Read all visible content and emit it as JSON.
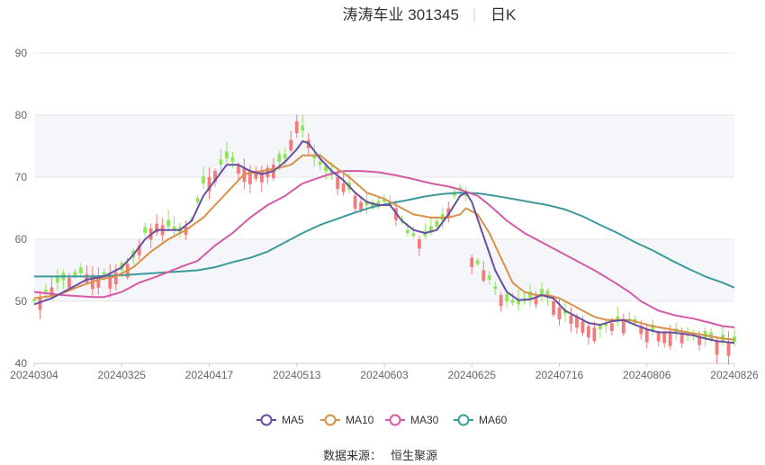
{
  "chart_data": {
    "type": "candlestick",
    "title": "涛涛车业 301345",
    "period": "日K",
    "source_label": "数据来源：",
    "source_value": "恒生聚源",
    "ylim": [
      40,
      90
    ],
    "yticks": [
      40,
      50,
      60,
      70,
      80,
      90
    ],
    "x_tick_labels": [
      "20240304",
      "20240325",
      "20240417",
      "20240513",
      "20240603",
      "20240625",
      "20240716",
      "20240806",
      "20240826"
    ],
    "x_tick_index": [
      0,
      15,
      30,
      45,
      60,
      75,
      90,
      105,
      120
    ],
    "num_days": 121,
    "colors": {
      "up": "#f27c7c",
      "down": "#8ee65a",
      "MA5": "#6a4fa0",
      "MA10": "#d9914a",
      "MA30": "#d45aa6",
      "MA60": "#3e9a9a",
      "band": "#f5f6fa",
      "grid": "#e6e6e6"
    },
    "legend": [
      "MA5",
      "MA10",
      "MA30",
      "MA60"
    ],
    "close_anchors": [
      [
        0,
        50
      ],
      [
        4,
        53
      ],
      [
        8,
        54.5
      ],
      [
        12,
        54
      ],
      [
        15,
        55
      ],
      [
        17,
        57
      ],
      [
        19,
        61
      ],
      [
        21,
        62.5
      ],
      [
        23,
        62
      ],
      [
        25,
        61
      ],
      [
        27,
        63
      ],
      [
        29,
        69
      ],
      [
        31,
        71
      ],
      [
        33,
        73
      ],
      [
        35,
        72
      ],
      [
        37,
        71
      ],
      [
        39,
        71
      ],
      [
        41,
        72
      ],
      [
        43,
        73
      ],
      [
        45,
        79
      ],
      [
        47,
        76
      ],
      [
        48,
        73
      ],
      [
        50,
        71
      ],
      [
        52,
        70
      ],
      [
        54,
        68
      ],
      [
        56,
        66
      ],
      [
        58,
        65
      ],
      [
        60,
        66
      ],
      [
        62,
        65
      ],
      [
        64,
        61
      ],
      [
        66,
        60
      ],
      [
        68,
        61
      ],
      [
        70,
        63
      ],
      [
        72,
        67
      ],
      [
        73,
        68
      ],
      [
        74,
        67
      ],
      [
        75,
        57
      ],
      [
        77,
        55
      ],
      [
        79,
        52
      ],
      [
        81,
        50
      ],
      [
        83,
        49.5
      ],
      [
        85,
        50.5
      ],
      [
        87,
        51
      ],
      [
        89,
        50
      ],
      [
        91,
        48
      ],
      [
        93,
        47.5
      ],
      [
        95,
        46
      ],
      [
        97,
        45.5
      ],
      [
        99,
        46.5
      ],
      [
        101,
        47
      ],
      [
        103,
        46.5
      ],
      [
        105,
        45.5
      ],
      [
        107,
        45
      ],
      [
        109,
        45
      ],
      [
        111,
        44.8
      ],
      [
        113,
        44.5
      ],
      [
        115,
        44
      ],
      [
        117,
        43.5
      ],
      [
        120,
        43.5
      ]
    ],
    "MA5": [
      [
        0,
        49.5
      ],
      [
        3,
        50.5
      ],
      [
        6,
        52
      ],
      [
        9,
        53.5
      ],
      [
        12,
        54
      ],
      [
        15,
        55.5
      ],
      [
        17,
        57.5
      ],
      [
        19,
        60
      ],
      [
        21,
        61.5
      ],
      [
        23,
        61.5
      ],
      [
        25,
        61.5
      ],
      [
        27,
        63
      ],
      [
        29,
        67
      ],
      [
        31,
        69.5
      ],
      [
        33,
        72
      ],
      [
        35,
        72
      ],
      [
        37,
        71
      ],
      [
        39,
        70.5
      ],
      [
        41,
        71
      ],
      [
        43,
        72.5
      ],
      [
        45,
        74.5
      ],
      [
        46,
        75.8
      ],
      [
        47,
        75.5
      ],
      [
        49,
        73
      ],
      [
        51,
        71
      ],
      [
        53,
        69.5
      ],
      [
        55,
        67.5
      ],
      [
        57,
        66
      ],
      [
        59,
        65.5
      ],
      [
        61,
        65.5
      ],
      [
        63,
        63
      ],
      [
        65,
        61.5
      ],
      [
        67,
        61
      ],
      [
        69,
        61.5
      ],
      [
        71,
        64
      ],
      [
        73,
        67
      ],
      [
        74,
        67.5
      ],
      [
        75,
        66
      ],
      [
        77,
        60.5
      ],
      [
        79,
        55
      ],
      [
        81,
        51.5
      ],
      [
        83,
        50.2
      ],
      [
        85,
        50.3
      ],
      [
        87,
        51
      ],
      [
        89,
        50.5
      ],
      [
        91,
        48.5
      ],
      [
        93,
        47.5
      ],
      [
        95,
        46.5
      ],
      [
        97,
        46.2
      ],
      [
        99,
        46.8
      ],
      [
        101,
        47
      ],
      [
        103,
        46.2
      ],
      [
        105,
        45.5
      ],
      [
        107,
        45
      ],
      [
        109,
        45
      ],
      [
        111,
        44.8
      ],
      [
        113,
        44.5
      ],
      [
        115,
        44
      ],
      [
        117,
        43.6
      ],
      [
        120,
        43.3
      ]
    ],
    "MA10": [
      [
        0,
        50.5
      ],
      [
        4,
        51
      ],
      [
        8,
        52.5
      ],
      [
        11,
        53.5
      ],
      [
        14,
        54
      ],
      [
        17,
        55.5
      ],
      [
        20,
        58
      ],
      [
        23,
        60
      ],
      [
        26,
        61.5
      ],
      [
        29,
        63.5
      ],
      [
        31,
        65.5
      ],
      [
        34,
        68.5
      ],
      [
        36,
        70.5
      ],
      [
        39,
        71
      ],
      [
        42,
        71.5
      ],
      [
        44,
        72
      ],
      [
        46,
        73.5
      ],
      [
        49,
        73.5
      ],
      [
        51,
        72
      ],
      [
        54,
        70
      ],
      [
        57,
        67.5
      ],
      [
        60,
        66.5
      ],
      [
        62,
        65.5
      ],
      [
        65,
        64
      ],
      [
        68,
        63.5
      ],
      [
        71,
        63.5
      ],
      [
        73,
        64
      ],
      [
        74,
        65
      ],
      [
        76,
        64
      ],
      [
        78,
        61
      ],
      [
        80,
        57
      ],
      [
        82,
        53
      ],
      [
        84,
        51.5
      ],
      [
        86,
        51
      ],
      [
        88,
        51
      ],
      [
        90,
        50.5
      ],
      [
        92,
        49.5
      ],
      [
        94,
        48.5
      ],
      [
        96,
        47.5
      ],
      [
        98,
        47
      ],
      [
        100,
        47
      ],
      [
        102,
        47
      ],
      [
        104,
        46.5
      ],
      [
        106,
        46
      ],
      [
        109,
        45.5
      ],
      [
        112,
        45
      ],
      [
        115,
        44.5
      ],
      [
        118,
        44
      ],
      [
        120,
        43.8
      ]
    ],
    "MA30": [
      [
        0,
        51.5
      ],
      [
        5,
        51
      ],
      [
        10,
        50.7
      ],
      [
        12,
        50.7
      ],
      [
        15,
        51.5
      ],
      [
        18,
        53
      ],
      [
        21,
        54
      ],
      [
        25,
        55.5
      ],
      [
        28,
        56.5
      ],
      [
        31,
        59
      ],
      [
        34,
        61
      ],
      [
        37,
        63.5
      ],
      [
        40,
        65.5
      ],
      [
        43,
        67
      ],
      [
        46,
        69
      ],
      [
        50,
        70.3
      ],
      [
        53,
        71
      ],
      [
        56,
        71
      ],
      [
        59,
        70.8
      ],
      [
        62,
        70.3
      ],
      [
        65,
        69.7
      ],
      [
        68,
        69
      ],
      [
        71,
        68.5
      ],
      [
        73,
        68
      ],
      [
        76,
        67
      ],
      [
        78,
        65.5
      ],
      [
        81,
        63
      ],
      [
        84,
        61
      ],
      [
        87,
        59.5
      ],
      [
        90,
        58
      ],
      [
        93,
        56.5
      ],
      [
        96,
        55
      ],
      [
        99,
        53.3
      ],
      [
        102,
        51.5
      ],
      [
        104,
        50
      ],
      [
        107,
        48.5
      ],
      [
        110,
        47.7
      ],
      [
        113,
        47.2
      ],
      [
        116,
        46.5
      ],
      [
        118,
        46
      ],
      [
        120,
        45.8
      ]
    ],
    "MA60": [
      [
        0,
        54
      ],
      [
        5,
        54
      ],
      [
        10,
        54
      ],
      [
        15,
        54.2
      ],
      [
        20,
        54.5
      ],
      [
        25,
        54.8
      ],
      [
        28,
        55
      ],
      [
        31,
        55.5
      ],
      [
        34,
        56.3
      ],
      [
        37,
        57
      ],
      [
        40,
        58
      ],
      [
        43,
        59.5
      ],
      [
        46,
        61
      ],
      [
        49,
        62.3
      ],
      [
        52,
        63.3
      ],
      [
        55,
        64.3
      ],
      [
        58,
        65.2
      ],
      [
        61,
        65.8
      ],
      [
        64,
        66.3
      ],
      [
        67,
        66.9
      ],
      [
        70,
        67.3
      ],
      [
        73,
        67.5
      ],
      [
        76,
        67.4
      ],
      [
        79,
        67
      ],
      [
        82,
        66.5
      ],
      [
        85,
        66
      ],
      [
        88,
        65.5
      ],
      [
        91,
        64.8
      ],
      [
        94,
        63.7
      ],
      [
        97,
        62.3
      ],
      [
        100,
        61
      ],
      [
        103,
        59.5
      ],
      [
        106,
        58.2
      ],
      [
        109,
        56.7
      ],
      [
        112,
        55.3
      ],
      [
        115,
        54
      ],
      [
        118,
        53
      ],
      [
        120,
        52.2
      ]
    ]
  }
}
